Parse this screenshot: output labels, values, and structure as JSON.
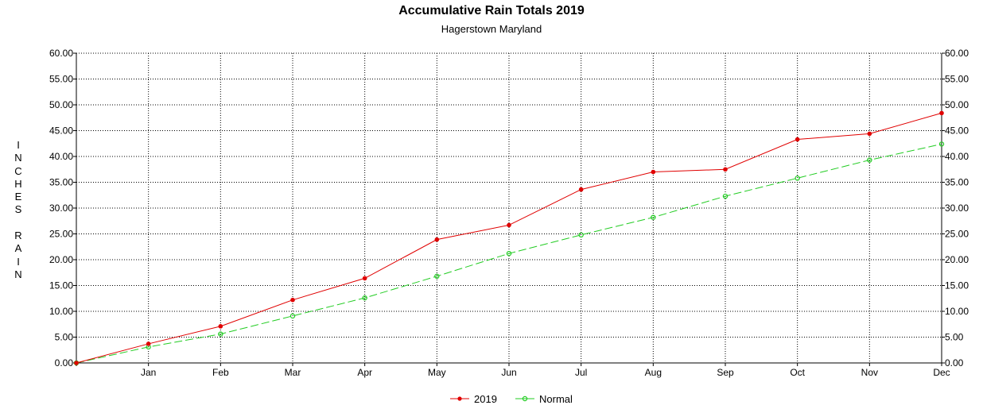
{
  "chart_data": {
    "type": "line",
    "title": "Accumulative Rain Totals 2019",
    "subtitle": "Hagerstown Maryland",
    "ylabel": "INCHES RAIN",
    "xlabel": "",
    "categories": [
      "",
      "Jan",
      "Feb",
      "Mar",
      "Apr",
      "May",
      "Jun",
      "Jul",
      "Aug",
      "Sep",
      "Oct",
      "Nov",
      "Dec"
    ],
    "ylim": [
      0,
      60
    ],
    "yticks": [
      "0.00",
      "5.00",
      "10.00",
      "15.00",
      "20.00",
      "25.00",
      "30.00",
      "35.00",
      "40.00",
      "45.00",
      "50.00",
      "55.00",
      "60.00"
    ],
    "grid": true,
    "legend_position": "bottom-center",
    "series": [
      {
        "name": "2019",
        "color": "#e00000",
        "style": "solid",
        "values": [
          0,
          3.7,
          7.1,
          12.2,
          16.4,
          23.9,
          26.7,
          33.6,
          37.0,
          37.5,
          43.3,
          44.4,
          48.4
        ]
      },
      {
        "name": "Normal",
        "color": "#22cc22",
        "style": "dashed",
        "values": [
          0,
          3.1,
          5.6,
          9.1,
          12.6,
          16.8,
          21.2,
          24.8,
          28.2,
          32.3,
          35.8,
          39.3,
          42.4
        ]
      }
    ]
  }
}
